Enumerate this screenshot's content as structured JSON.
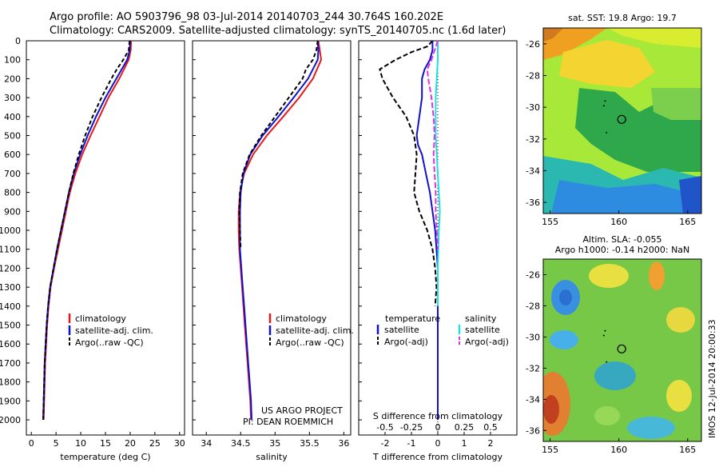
{
  "header": {
    "title_line1": "Argo profile: AO 5903796_98 03-Jul-2014 20140703_244 30.764S 160.202E",
    "title_line2": "Climatology: CARS2009. Satellite-adjusted climatology: synTS_20140705.nc (1.6d later)"
  },
  "colors": {
    "climatology": "#e41a1c",
    "satellite": "#1010d0",
    "argo": "#000000",
    "sal_sat": "#20e0e0",
    "sal_argo": "#e030e0"
  },
  "chart_data": [
    {
      "type": "line",
      "panel": "temperature",
      "xlabel": "temperature (deg C)",
      "xlim": [
        -1,
        31
      ],
      "xticks": [
        0,
        5,
        10,
        15,
        20,
        25,
        30
      ],
      "ylim": [
        2080,
        0
      ],
      "yticks": [
        0,
        100,
        200,
        300,
        400,
        500,
        600,
        700,
        800,
        900,
        1000,
        1100,
        1200,
        1300,
        1400,
        1500,
        1600,
        1700,
        1800,
        1900,
        2000
      ],
      "series": [
        {
          "name": "climatology",
          "color": "#e41a1c",
          "depth": [
            0,
            50,
            100,
            200,
            300,
            400,
            500,
            600,
            700,
            800,
            900,
            1000,
            1100,
            1200,
            1300,
            1400,
            1500,
            1600,
            1700,
            1800,
            1900,
            2000
          ],
          "values": [
            20.2,
            20.1,
            19.7,
            17.8,
            15.6,
            13.8,
            12.0,
            10.3,
            8.9,
            7.8,
            7.0,
            6.2,
            5.4,
            4.6,
            3.9,
            3.5,
            3.2,
            3.0,
            2.8,
            2.7,
            2.6,
            2.5
          ]
        },
        {
          "name": "satellite-adj. clim.",
          "color": "#1010d0",
          "depth": [
            0,
            50,
            100,
            200,
            300,
            400,
            500,
            600,
            700,
            800,
            900,
            1000,
            1100,
            1200,
            1300,
            1400,
            1500,
            1600,
            1700,
            1800,
            1900,
            2000
          ],
          "values": [
            20.0,
            19.9,
            19.4,
            17.2,
            15.0,
            13.1,
            11.4,
            9.9,
            8.6,
            7.6,
            6.8,
            6.0,
            5.2,
            4.5,
            3.8,
            3.4,
            3.1,
            2.9,
            2.7,
            2.6,
            2.5,
            2.4
          ]
        },
        {
          "name": "Argo(..raw -QC)",
          "color": "#000000",
          "dash": "5,3",
          "depth": [
            0,
            50,
            100,
            150,
            200,
            300,
            400,
            500,
            600,
            700,
            800,
            900,
            1000,
            1100,
            1200,
            1300,
            1400,
            1500,
            1600,
            1700,
            1800,
            1900,
            2000
          ],
          "values": [
            19.9,
            19.7,
            18.6,
            17.3,
            16.2,
            14.2,
            12.4,
            10.9,
            9.6,
            8.5,
            7.6,
            6.8,
            6.0,
            5.2,
            4.5,
            3.8,
            3.4,
            3.1,
            2.9,
            2.7,
            2.6,
            2.5,
            2.4
          ]
        }
      ],
      "legend": [
        "climatology",
        "satellite-adj. clim.",
        "Argo(..raw -QC)"
      ]
    },
    {
      "type": "line",
      "panel": "salinity",
      "xlabel": "salinity",
      "xlim": [
        33.8,
        36.1
      ],
      "xticks": [
        34,
        34.5,
        35,
        35.5,
        36
      ],
      "ylim": [
        2080,
        0
      ],
      "series": [
        {
          "name": "climatology",
          "color": "#e41a1c",
          "depth": [
            0,
            50,
            100,
            200,
            300,
            400,
            500,
            600,
            700,
            800,
            900,
            1000,
            1100,
            1200,
            1300,
            1400,
            1500,
            1600,
            1700,
            1800,
            1900,
            2000
          ],
          "values": [
            35.63,
            35.65,
            35.67,
            35.55,
            35.35,
            35.12,
            34.88,
            34.68,
            34.55,
            34.49,
            34.47,
            34.47,
            34.48,
            34.5,
            34.52,
            34.54,
            34.56,
            34.58,
            34.6,
            34.62,
            34.64,
            34.65
          ]
        },
        {
          "name": "satellite-adj. clim.",
          "color": "#1010d0",
          "depth": [
            0,
            50,
            100,
            200,
            300,
            400,
            500,
            600,
            700,
            800,
            900,
            1000,
            1100,
            1200,
            1300,
            1400,
            1500,
            1600,
            1700,
            1800,
            1900,
            2000
          ],
          "values": [
            35.62,
            35.63,
            35.62,
            35.48,
            35.27,
            35.05,
            34.82,
            34.64,
            34.54,
            34.5,
            34.49,
            34.49,
            34.49,
            34.51,
            34.53,
            34.55,
            34.57,
            34.59,
            34.61,
            34.63,
            34.65,
            34.66
          ]
        },
        {
          "name": "Argo(..raw -QC)",
          "color": "#000000",
          "dash": "5,3",
          "depth": [
            0,
            50,
            100,
            150,
            200,
            300,
            400,
            500,
            600,
            700,
            800,
            900,
            1000,
            1100
          ],
          "values": [
            35.62,
            35.6,
            35.55,
            35.45,
            35.4,
            35.2,
            35.0,
            34.8,
            34.63,
            34.53,
            34.49,
            34.48,
            34.49,
            34.5
          ]
        }
      ],
      "legend": [
        "climatology",
        "satellite-adj. clim.",
        "Argo(..raw -QC)"
      ],
      "annotation": [
        "US ARGO PROJECT",
        "PI: DEAN ROEMMICH"
      ]
    },
    {
      "type": "line",
      "panel": "difference",
      "xlabel_bottom": "T difference from climatology",
      "xlabel_top": "S difference from climatology",
      "xlim_T": [
        -3,
        3
      ],
      "xticks_T": [
        -2,
        -1,
        0,
        1,
        2
      ],
      "xtick_labels_T": [
        "-2",
        "-1",
        "0",
        "1",
        "2"
      ],
      "xticks_S": [
        -0.5,
        -0.25,
        0,
        0.25,
        0.5
      ],
      "xtick_labels_S": [
        "-0.5",
        "-0.25",
        "0",
        "0.25",
        "0.5"
      ],
      "S_to_T_scale": 4,
      "ylim": [
        2080,
        0
      ],
      "series": [
        {
          "name": "temperature satellite",
          "color": "#1010d0",
          "depth": [
            0,
            50,
            100,
            150,
            200,
            300,
            400,
            500,
            550,
            600,
            700,
            800,
            900,
            1000,
            1100,
            1200,
            1300,
            1400,
            1500,
            1600,
            1700,
            1800,
            1900,
            2000
          ],
          "values": [
            -0.2,
            -0.2,
            -0.3,
            -0.5,
            -0.6,
            -0.6,
            -0.7,
            -0.8,
            -0.75,
            -0.6,
            -0.45,
            -0.3,
            -0.2,
            -0.1,
            -0.05,
            0.0,
            0.0,
            0.0,
            0.0,
            0.0,
            0.0,
            0.0,
            0.0,
            0.0
          ]
        },
        {
          "name": "temperature Argo(-adj)",
          "color": "#000000",
          "dash": "6,3",
          "depth": [
            0,
            30,
            60,
            100,
            150,
            200,
            300,
            400,
            500,
            600,
            700,
            800,
            900,
            1000,
            1100,
            1200,
            1300,
            1400
          ],
          "values": [
            -0.2,
            -0.4,
            -1.0,
            -1.6,
            -2.2,
            -2.1,
            -1.7,
            -1.2,
            -0.9,
            -0.8,
            -0.85,
            -0.9,
            -0.7,
            -0.4,
            -0.2,
            -0.1,
            -0.05,
            -0.1
          ]
        },
        {
          "name": "salinity satellite",
          "color": "#20e0e0",
          "depth": [
            0,
            100,
            200,
            300,
            400,
            500,
            600,
            700,
            800,
            900,
            1000,
            1200,
            1400
          ],
          "values": [
            0.0,
            0.0,
            -0.01,
            -0.02,
            -0.02,
            -0.02,
            -0.01,
            0.0,
            0.01,
            0.02,
            0.01,
            0.0,
            0.0
          ]
        },
        {
          "name": "salinity Argo(-adj)",
          "color": "#e030e0",
          "dash": "7,3",
          "depth": [
            0,
            50,
            100,
            150,
            200,
            300,
            400,
            500,
            600,
            700,
            800,
            900,
            1000,
            1100
          ],
          "values": [
            0.0,
            -0.03,
            -0.06,
            -0.1,
            -0.09,
            -0.06,
            -0.04,
            -0.03,
            -0.04,
            -0.03,
            -0.02,
            -0.02,
            -0.01,
            0.0
          ]
        }
      ],
      "legend": {
        "temperature_heading": "temperature",
        "salinity_heading": "salinity",
        "t_sat": "satellite",
        "t_argo": "Argo(-adj)",
        "s_sat": "satellite",
        "s_argo": "Argo(-adj)"
      }
    },
    {
      "type": "heatmap",
      "panel": "sst_map",
      "title": "sat. SST: 19.8 Argo: 19.7",
      "xticks": [
        155,
        160,
        165
      ],
      "yticks": [
        -26,
        -28,
        -30,
        -32,
        -34,
        -36
      ],
      "xlim": [
        154.5,
        166
      ],
      "ylim": [
        -36.7,
        -25
      ]
    },
    {
      "type": "heatmap",
      "panel": "sla_map",
      "title_line1": "Altim. SLA: -0.055",
      "title_line2": "Argo h1000: -0.14 h2000: NaN",
      "xticks": [
        155,
        160,
        165
      ],
      "yticks": [
        -26,
        -28,
        -30,
        -32,
        -34,
        -36
      ],
      "xlim": [
        154.5,
        166
      ],
      "ylim": [
        -36.7,
        -25
      ]
    }
  ],
  "side_stamp": "IMOS 12-Jul-2014 20:00:33"
}
